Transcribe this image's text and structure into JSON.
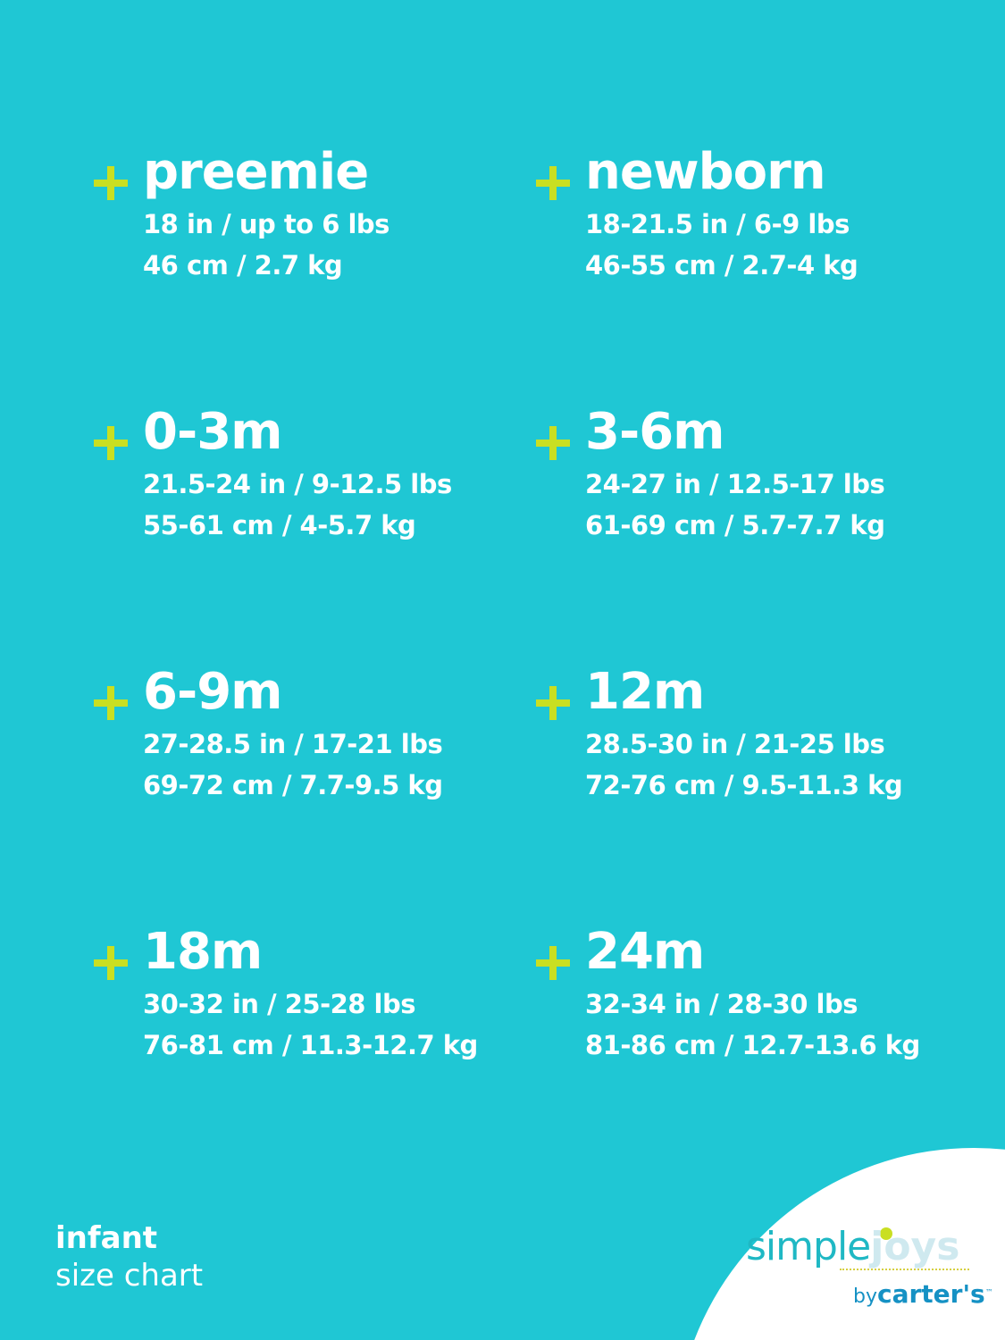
{
  "sizes": [
    {
      "label": "preemie",
      "imperial": "18 in / up to 6 lbs",
      "metric": "46 cm / 2.7 kg"
    },
    {
      "label": "newborn",
      "imperial": "18-21.5 in / 6-9 lbs",
      "metric": "46-55 cm / 2.7-4 kg"
    },
    {
      "label": "0-3m",
      "imperial": "21.5-24 in / 9-12.5 lbs",
      "metric": "55-61 cm / 4-5.7 kg"
    },
    {
      "label": "3-6m",
      "imperial": "24-27 in / 12.5-17 lbs",
      "metric": "61-69 cm / 5.7-7.7 kg"
    },
    {
      "label": "6-9m",
      "imperial": "27-28.5 in / 17-21 lbs",
      "metric": "69-72 cm / 7.7-9.5 kg"
    },
    {
      "label": "12m",
      "imperial": "28.5-30 in / 21-25 lbs",
      "metric": "72-76 cm / 9.5-11.3 kg"
    },
    {
      "label": "18m",
      "imperial": "30-32 in / 25-28 lbs",
      "metric": "76-81 cm / 11.3-12.7 kg"
    },
    {
      "label": "24m",
      "imperial": "32-34 in / 28-30 lbs",
      "metric": "81-86 cm / 12.7-13.6 kg"
    }
  ],
  "footer": {
    "line1": "infant",
    "line2": "size chart"
  },
  "logo": {
    "simple": "simple",
    "joys": "joys",
    "by": "by",
    "brand": "carter's",
    "tm": "™"
  },
  "colors": {
    "background": "#1fc7d4",
    "accent": "#c9df22",
    "text": "#ffffff"
  }
}
